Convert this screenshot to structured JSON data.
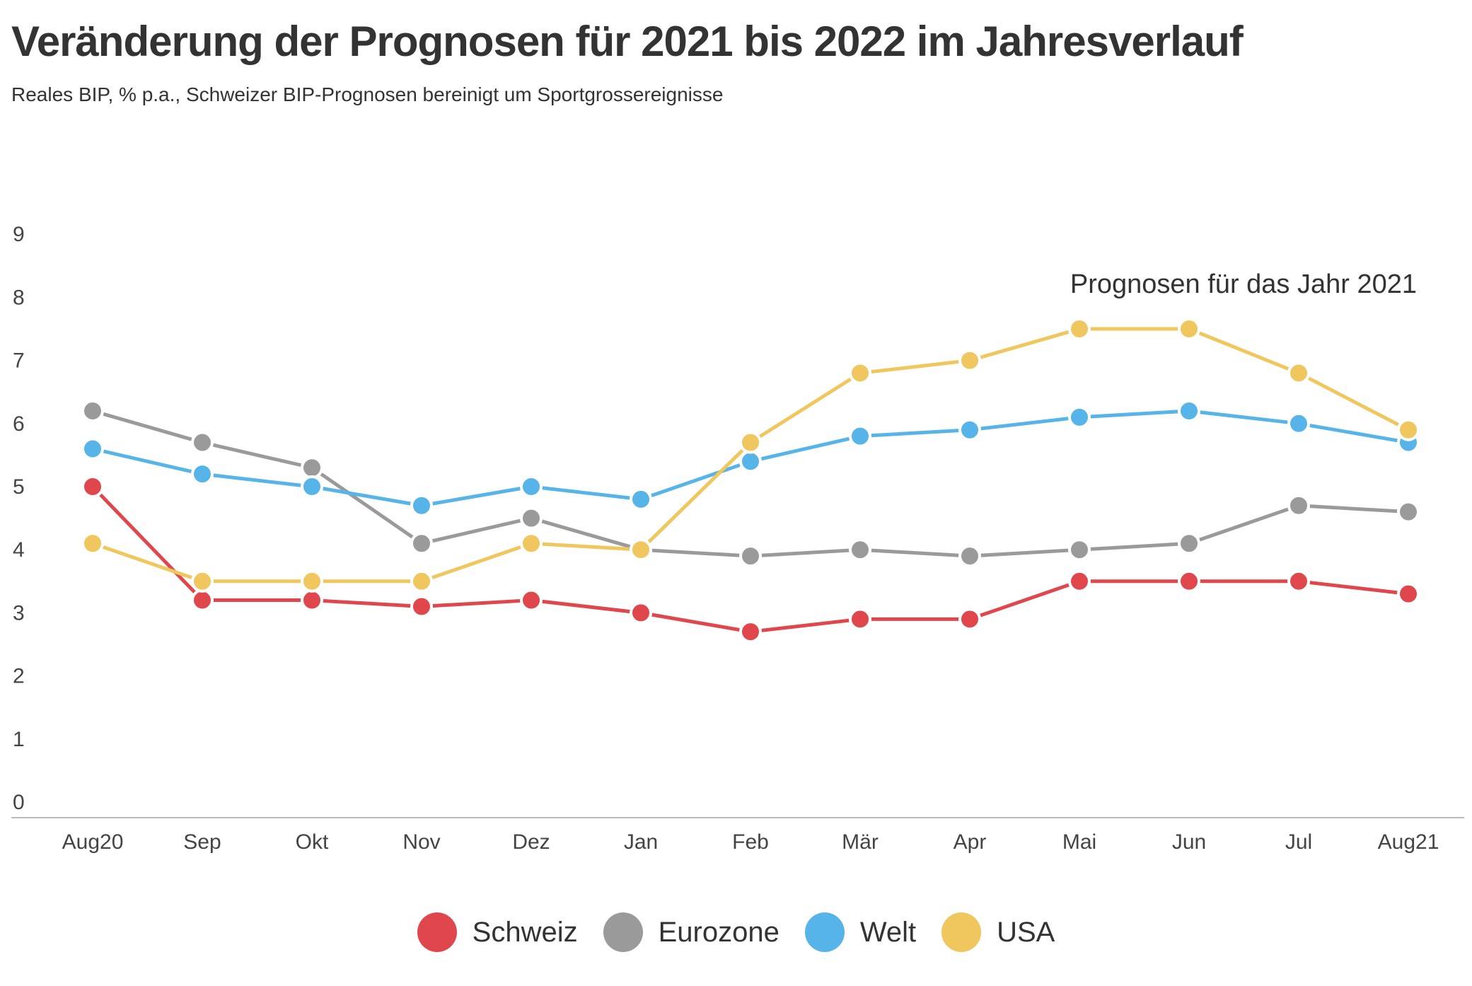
{
  "chart_data": {
    "type": "line",
    "title": "Veränderung der Prognosen für 2021 bis 2022 im Jahresverlauf",
    "subtitle": "Reales BIP, % p.a., Schweizer BIP-Prognosen bereinigt um Sportgrossereignisse",
    "categories": [
      "Aug20",
      "Sep",
      "Okt",
      "Nov",
      "Dez",
      "Jan",
      "Feb",
      "Mär",
      "Apr",
      "Mai",
      "Jun",
      "Jul",
      "Aug21"
    ],
    "y_ticks": [
      "0",
      "1",
      "2",
      "3",
      "4",
      "5",
      "6",
      "7",
      "8",
      "9"
    ],
    "ylim": [
      0,
      9
    ],
    "grid": false,
    "legend_position": "bottom-center",
    "annotation": "Prognosen für das Jahr 2021",
    "series": [
      {
        "name": "Schweiz",
        "color": "#e0474c",
        "values": [
          5.0,
          3.2,
          3.2,
          3.1,
          3.2,
          3.0,
          2.7,
          2.9,
          2.9,
          3.5,
          3.5,
          3.5,
          3.3
        ]
      },
      {
        "name": "Eurozone",
        "color": "#9a9a9a",
        "values": [
          6.2,
          5.7,
          5.3,
          4.1,
          4.5,
          4.0,
          3.9,
          4.0,
          3.9,
          4.0,
          4.1,
          4.7,
          4.6
        ]
      },
      {
        "name": "Welt",
        "color": "#56b4e9",
        "values": [
          5.6,
          5.2,
          5.0,
          4.7,
          5.0,
          4.8,
          5.4,
          5.8,
          5.9,
          6.1,
          6.2,
          6.0,
          5.7
        ]
      },
      {
        "name": "USA",
        "color": "#f0c75e",
        "values": [
          4.1,
          3.5,
          3.5,
          3.5,
          4.1,
          4.0,
          5.7,
          6.8,
          7.0,
          7.5,
          7.5,
          6.8,
          5.9
        ]
      }
    ]
  }
}
